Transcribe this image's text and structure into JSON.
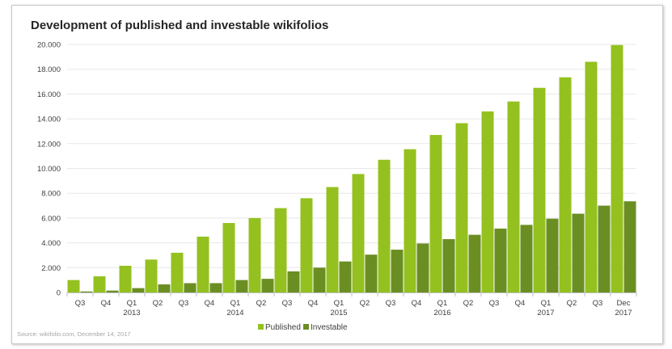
{
  "chart_data": {
    "type": "bar",
    "title": "Development of published and investable wikifolios",
    "xlabel": "",
    "ylabel": "",
    "ylim": [
      0,
      20000
    ],
    "yticks": [
      "0",
      "2.000",
      "4.000",
      "6.000",
      "8.000",
      "10.000",
      "12.000",
      "14.000",
      "16.000",
      "18.000",
      "20.000"
    ],
    "categories": [
      [
        "Q3",
        ""
      ],
      [
        "Q4",
        ""
      ],
      [
        "Q1",
        "2013"
      ],
      [
        "Q2",
        ""
      ],
      [
        "Q3",
        ""
      ],
      [
        "Q4",
        ""
      ],
      [
        "Q1",
        "2014"
      ],
      [
        "Q2",
        ""
      ],
      [
        "Q3",
        ""
      ],
      [
        "Q4",
        ""
      ],
      [
        "Q1",
        "2015"
      ],
      [
        "Q2",
        ""
      ],
      [
        "Q3",
        ""
      ],
      [
        "Q4",
        ""
      ],
      [
        "Q1",
        "2016"
      ],
      [
        "Q2",
        ""
      ],
      [
        "Q3",
        ""
      ],
      [
        "Q4",
        ""
      ],
      [
        "Q1",
        "2017"
      ],
      [
        "Q2",
        ""
      ],
      [
        "Q3",
        ""
      ],
      [
        "Dec",
        "2017"
      ]
    ],
    "series": [
      {
        "name": "Published",
        "color": "#94c11f",
        "values": [
          1000,
          1300,
          2150,
          2650,
          3200,
          4500,
          5600,
          6000,
          6800,
          7600,
          8500,
          9550,
          10700,
          11550,
          12700,
          13650,
          14600,
          15400,
          16500,
          17350,
          18600,
          19950
        ]
      },
      {
        "name": "Investable",
        "color": "#6b8e23",
        "values": [
          80,
          150,
          350,
          650,
          750,
          750,
          1000,
          1100,
          1700,
          2000,
          2500,
          3050,
          3450,
          3950,
          4300,
          4650,
          5150,
          5450,
          5950,
          6350,
          7000,
          7350
        ]
      }
    ],
    "legend_position": "bottom-right",
    "grid": true
  },
  "footer": {
    "source": "Source: wikifolio.com,  December 14, 2017"
  }
}
